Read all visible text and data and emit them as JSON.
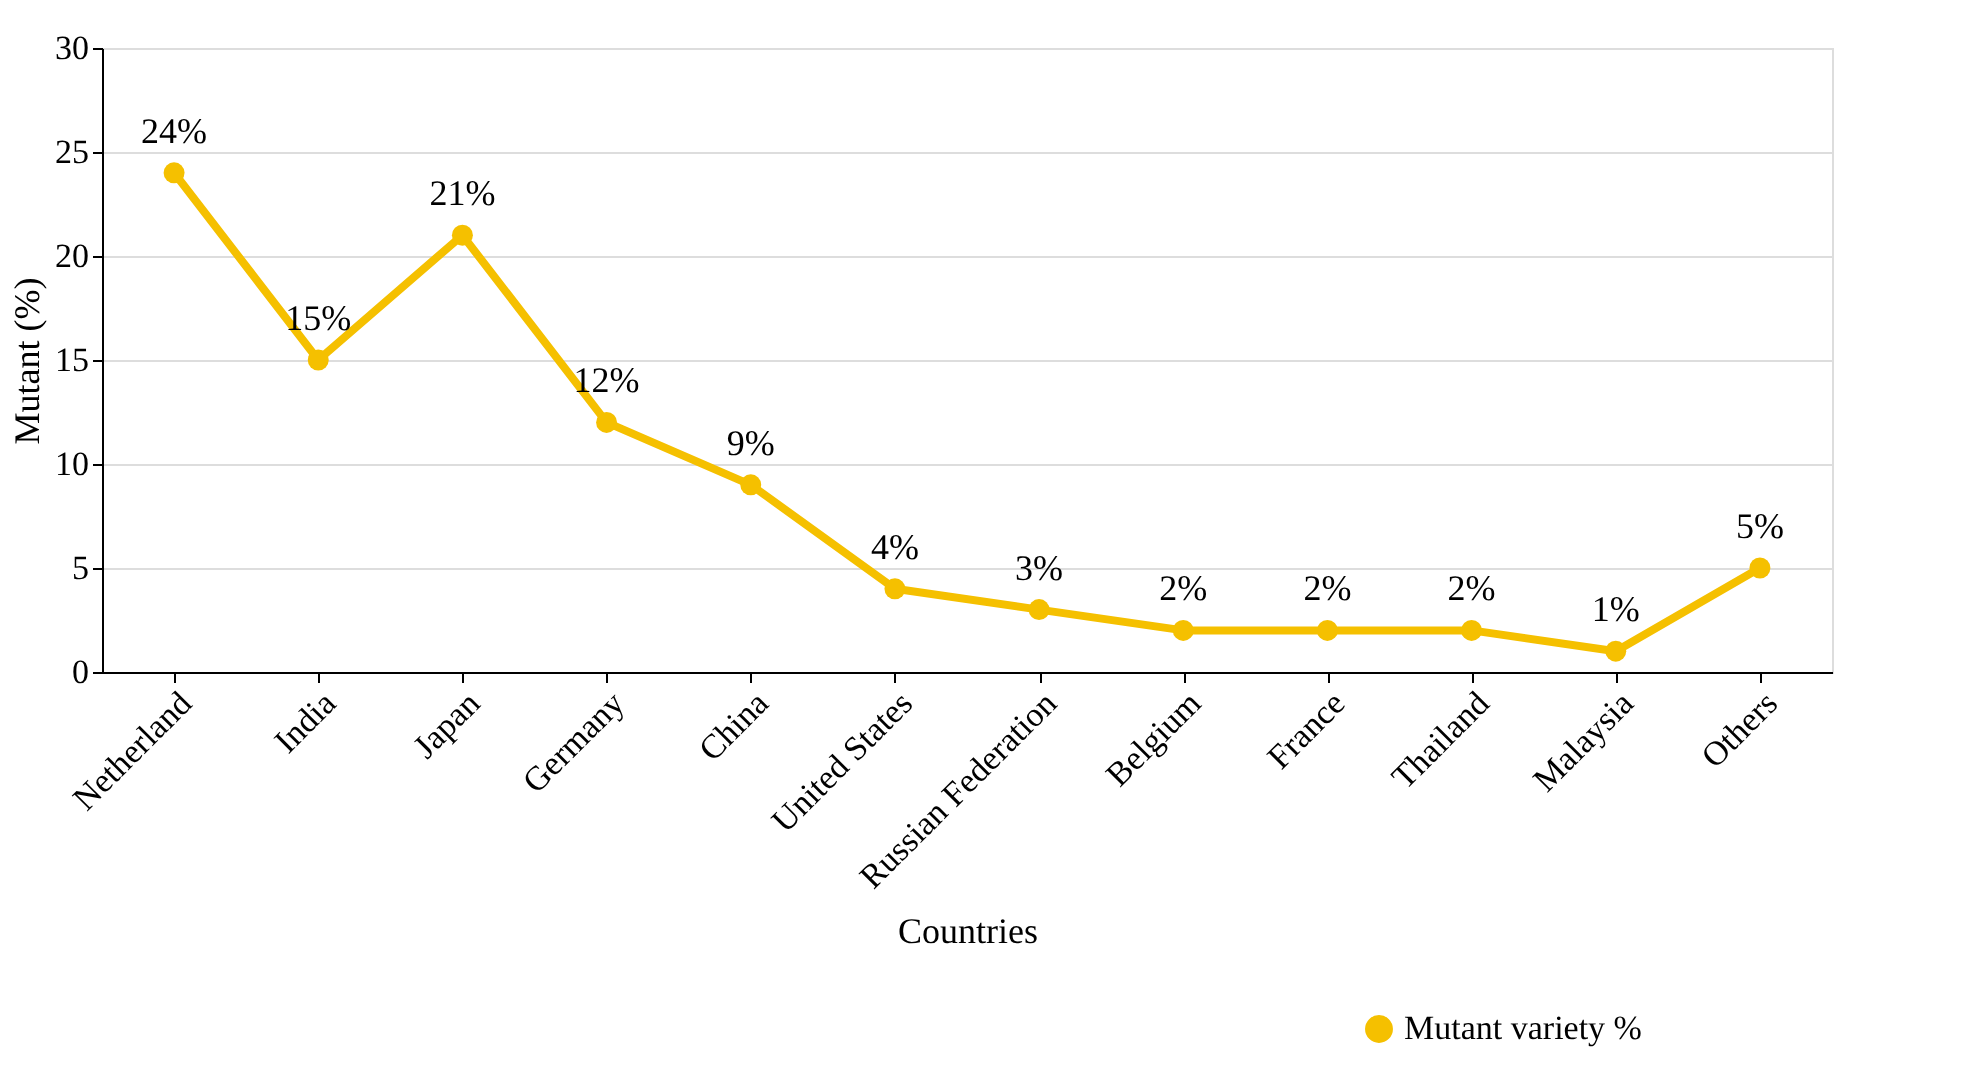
{
  "chart_data": {
    "type": "line",
    "xlabel": "Countries",
    "ylabel": "Mutant (%)",
    "categories": [
      "Netherland",
      "India",
      "Japan",
      "Germany",
      "China",
      "United States",
      "Russian Federation",
      "Belgium",
      "France",
      "Thailand",
      "Malaysia",
      "Others"
    ],
    "series": [
      {
        "name": "Mutant variety %",
        "color": "#f5c000",
        "values": [
          24,
          15,
          21,
          12,
          9,
          4,
          3,
          2,
          2,
          2,
          1,
          5
        ],
        "value_labels": [
          "24%",
          "15%",
          "21%",
          "12%",
          "9%",
          "4%",
          "3%",
          "2%",
          "2%",
          "2%",
          "1%",
          "5%"
        ]
      }
    ],
    "ylim": [
      0,
      30
    ],
    "yticks": [
      0,
      5,
      10,
      15,
      20,
      25,
      30
    ],
    "grid": "y",
    "legend": "bottom right",
    "marker": "circle",
    "line_style": "solid"
  }
}
